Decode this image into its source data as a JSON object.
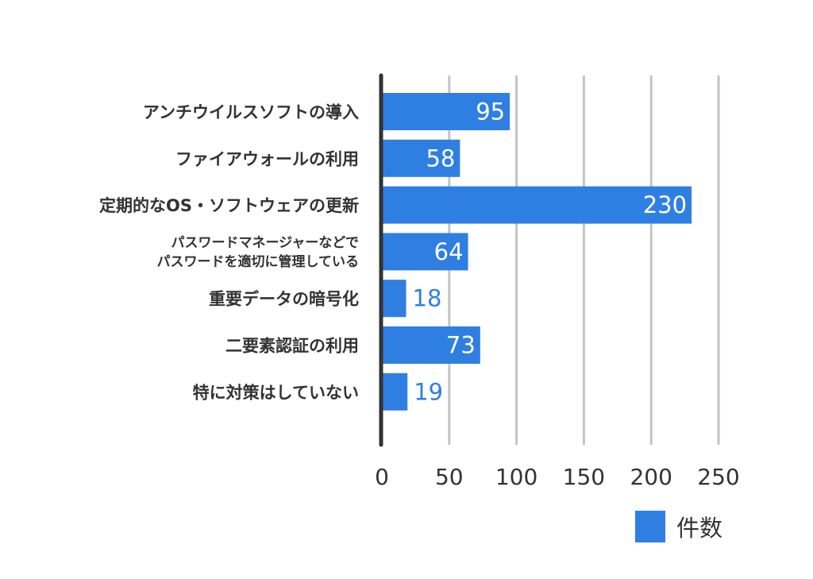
{
  "chart_data": {
    "type": "bar",
    "orientation": "horizontal",
    "categories": [
      [
        "アンチウイルスソフトの導入"
      ],
      [
        "ファイアウォールの利用"
      ],
      [
        "定期的なOS・ソフトウェアの更新"
      ],
      [
        "パスワードマネージャーなどで",
        "パスワードを適切に管理している"
      ],
      [
        "重要データの暗号化"
      ],
      [
        "二要素認証の利用"
      ],
      [
        "特に対策はしていない"
      ]
    ],
    "series": [
      {
        "name": "件数",
        "values": [
          95,
          58,
          230,
          64,
          18,
          73,
          19
        ],
        "color": "#2f7fe3"
      }
    ],
    "xlim": [
      0,
      250
    ],
    "xticks": [
      "0",
      "50",
      "100",
      "150",
      "200",
      "250"
    ],
    "grid": true,
    "legend": "bottom-right",
    "title": "",
    "xlabel": "",
    "ylabel": ""
  }
}
